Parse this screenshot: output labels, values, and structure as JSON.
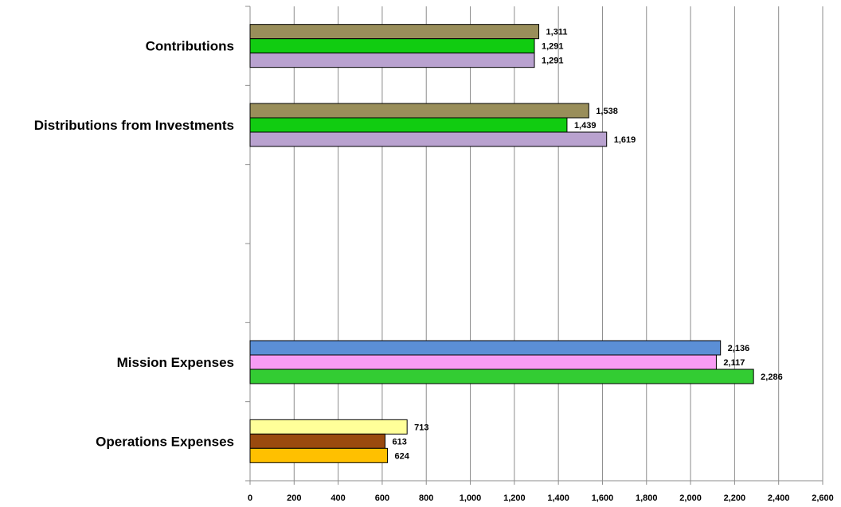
{
  "chart_data": {
    "type": "bar",
    "orientation": "horizontal",
    "title": "",
    "xlabel": "",
    "ylabel": "",
    "xlim": [
      0,
      2600
    ],
    "x_ticks": [
      0,
      200,
      400,
      600,
      800,
      1000,
      1200,
      1400,
      1600,
      1800,
      2000,
      2200,
      2400,
      2600
    ],
    "x_tick_labels": [
      "0",
      "200",
      "400",
      "600",
      "800",
      "1,000",
      "1,200",
      "1,400",
      "1,600",
      "1,800",
      "2,000",
      "2,200",
      "2,400",
      "2,600"
    ],
    "grid": "vertical",
    "legend": "none",
    "categories": [
      {
        "label": "Contributions",
        "bars": [
          {
            "value": 1311,
            "label": "1,311",
            "color": "#998E5A"
          },
          {
            "value": 1291,
            "label": "1,291",
            "color": "#11CC11"
          },
          {
            "value": 1291,
            "label": "1,291",
            "color": "#B9A2CF"
          }
        ]
      },
      {
        "label": "Distributions from Investments",
        "bars": [
          {
            "value": 1538,
            "label": "1,538",
            "color": "#998E5A"
          },
          {
            "value": 1439,
            "label": "1,439",
            "color": "#11CC11"
          },
          {
            "value": 1619,
            "label": "1,619",
            "color": "#B9A2CF"
          }
        ]
      },
      {
        "label": "",
        "bars": []
      },
      {
        "label": "",
        "bars": []
      },
      {
        "label": "Mission Expenses",
        "bars": [
          {
            "value": 2136,
            "label": "2,136",
            "color": "#5B8FD6"
          },
          {
            "value": 2117,
            "label": "2,117",
            "color": "#F79CF4"
          },
          {
            "value": 2286,
            "label": "2,286",
            "color": "#33CC33"
          }
        ]
      },
      {
        "label": "Operations Expenses",
        "bars": [
          {
            "value": 713,
            "label": "713",
            "color": "#FFFF99"
          },
          {
            "value": 613,
            "label": "613",
            "color": "#9A4A0E"
          },
          {
            "value": 624,
            "label": "624",
            "color": "#FFC000"
          }
        ]
      }
    ]
  }
}
